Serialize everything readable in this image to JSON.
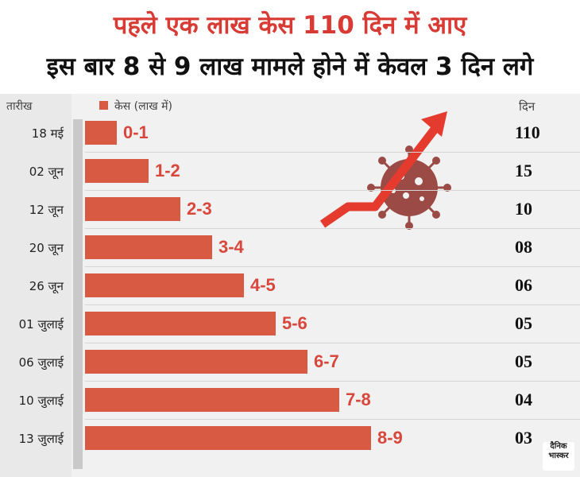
{
  "headline": {
    "line1": "पहले एक लाख केस 110 दिन में आए",
    "line2": "इस बार 8 से 9 लाख मामले होने में केवल 3 दिन लगे"
  },
  "headers": {
    "date": "तारीख",
    "legend": "केस (लाख में)",
    "days": "दिन"
  },
  "colors": {
    "bar": "#d95a43",
    "label": "#d9463c",
    "title_red": "#d83a34",
    "arrow": "#e53b2f",
    "virus": "#9b4a45"
  },
  "logo": {
    "line1": "दैनिक",
    "line2": "भास्कर"
  },
  "chart_data": {
    "type": "bar",
    "orientation": "horizontal",
    "title": "पहले एक लाख केस 110 दिन में आए",
    "subtitle": "इस बार 8 से 9 लाख मामले होने में केवल 3 दिन लगे",
    "categories": [
      "18 मई",
      "02 जून",
      "12 जून",
      "20 जून",
      "26 जून",
      "01 जुलाई",
      "06 जुलाई",
      "10 जुलाई",
      "13 जुलाई"
    ],
    "values": [
      1,
      2,
      3,
      4,
      5,
      6,
      7,
      8,
      9
    ],
    "value_labels": [
      "0-1",
      "1-2",
      "2-3",
      "3-4",
      "4-5",
      "5-6",
      "6-7",
      "7-8",
      "8-9"
    ],
    "days": [
      "110",
      "15",
      "10",
      "08",
      "06",
      "05",
      "05",
      "04",
      "03"
    ],
    "legend": "केस (लाख में)",
    "xlim": [
      0,
      9
    ],
    "grid": false
  }
}
